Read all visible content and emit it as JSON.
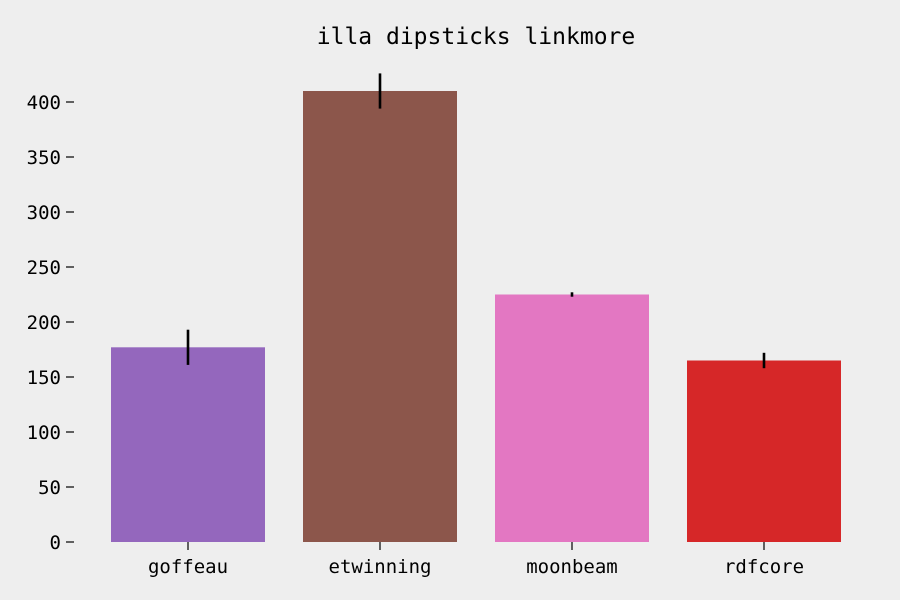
{
  "chart_data": {
    "type": "bar",
    "title": "illa dipsticks linkmore",
    "xlabel": "",
    "ylabel": "",
    "categories": [
      "goffeau",
      "etwinning",
      "moonbeam",
      "rdfcore"
    ],
    "values": [
      177,
      410,
      225,
      165
    ],
    "errors": [
      16,
      16,
      2,
      7
    ],
    "colors": [
      "#9467bd",
      "#8c564b",
      "#e377c2",
      "#d62728"
    ],
    "ylim": [
      0,
      430
    ],
    "yticks": [
      0,
      50,
      100,
      150,
      200,
      250,
      300,
      350,
      400
    ],
    "grid": false,
    "legend": "none",
    "background": "#eeeeee"
  }
}
